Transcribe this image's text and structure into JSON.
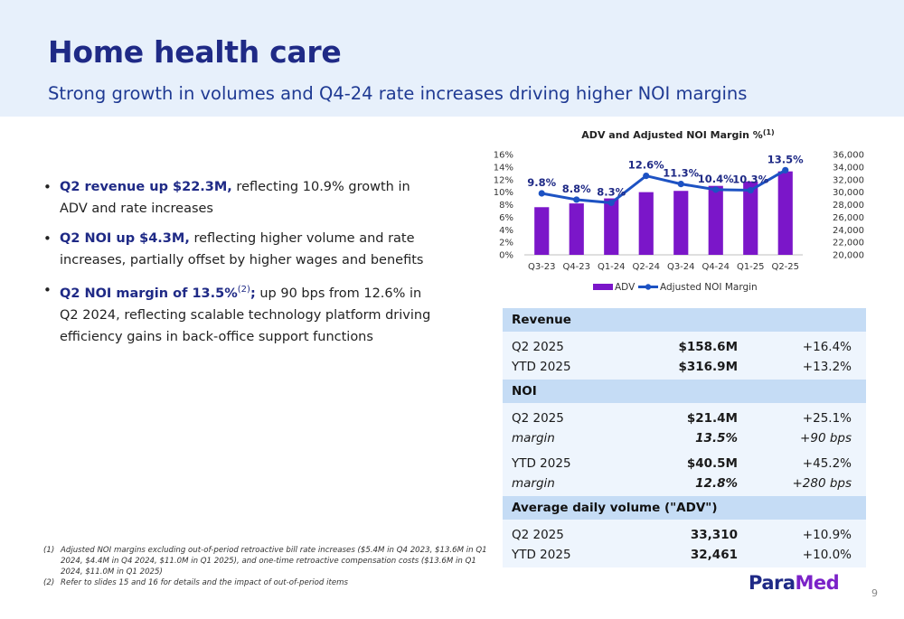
{
  "header": {
    "title": "Home health care",
    "subtitle": "Strong growth in volumes and Q4-24 rate increases driving higher NOI margins"
  },
  "bullets": [
    {
      "strong": "Q2 revenue up $22.3M,",
      "sup": "",
      "semi": "",
      "rest": " reflecting 10.9% growth in ADV and rate increases"
    },
    {
      "strong": "Q2 NOI up $4.3M,",
      "sup": "",
      "semi": "",
      "rest": " reflecting higher volume and rate increases, partially offset by higher wages and benefits"
    },
    {
      "strong": "Q2 NOI margin of 13.5%",
      "sup": "(2)",
      "semi": ";",
      "rest": " up 90 bps from 12.6% in Q2 2024, reflecting scalable technology platform driving efficiency gains in back-office support functions"
    }
  ],
  "chart_data": {
    "type": "bar",
    "title": "ADV and Adjusted NOI Margin %",
    "title_sup": "(1)",
    "categories": [
      "Q3-23",
      "Q4-23",
      "Q1-24",
      "Q2-24",
      "Q3-24",
      "Q4-24",
      "Q1-25",
      "Q2-25"
    ],
    "series": [
      {
        "name": "ADV",
        "type": "bar",
        "axis": "right",
        "values": [
          27600,
          28200,
          29000,
          30000,
          30200,
          31000,
          31700,
          33310
        ],
        "color": "#7b16c9"
      },
      {
        "name": "Adjusted NOI Margin",
        "type": "line",
        "axis": "left",
        "values": [
          9.8,
          8.8,
          8.3,
          12.6,
          11.3,
          10.4,
          10.3,
          13.5
        ],
        "labels": [
          "9.8%",
          "8.8%",
          "8.3%",
          "12.6%",
          "11.3%",
          "10.4%",
          "10.3%",
          "13.5%"
        ],
        "color": "#1d52c3"
      }
    ],
    "y_left": {
      "min": 0,
      "max": 16,
      "step": 2,
      "tick_labels": [
        "0%",
        "2%",
        "4%",
        "6%",
        "8%",
        "10%",
        "12%",
        "14%",
        "16%"
      ]
    },
    "y_right": {
      "min": 20000,
      "max": 36000,
      "step": 2000,
      "tick_labels": [
        "20,000",
        "22,000",
        "24,000",
        "26,000",
        "28,000",
        "30,000",
        "32,000",
        "34,000",
        "36,000"
      ]
    },
    "legend_position": "bottom",
    "grid": false
  },
  "kpi": {
    "revenue": {
      "label": "Revenue",
      "rows": [
        {
          "period": "Q2 2025",
          "value": "$158.6M",
          "change": "+16.4%"
        },
        {
          "period": "YTD 2025",
          "value": "$316.9M",
          "change": "+13.2%"
        }
      ]
    },
    "noi": {
      "label": "NOI",
      "q2": {
        "period": "Q2 2025",
        "value": "$21.4M",
        "change": "+25.1%",
        "m_label": "margin",
        "m_value": "13.5%",
        "m_change": "+90 bps"
      },
      "ytd": {
        "period": "YTD 2025",
        "value": "$40.5M",
        "change": "+45.2%",
        "m_label": "margin",
        "m_value": "12.8%",
        "m_change": "+280 bps"
      }
    },
    "adv": {
      "label": "Average daily volume (\"ADV\")",
      "rows": [
        {
          "period": "Q2 2025",
          "value": "33,310",
          "change": "+10.9%"
        },
        {
          "period": "YTD 2025",
          "value": "32,461",
          "change": "+10.0%"
        }
      ]
    }
  },
  "footnotes": [
    {
      "num": "(1)",
      "text": "Adjusted NOI margins excluding out-of-period retroactive bill rate increases ($5.4M in Q4 2023, $13.6M in Q1 2024, $4.4M in Q4 2024, $11.0M in Q1 2025), and one-time retroactive compensation costs ($13.6M in Q1 2024, $11.0M in Q1 2025)"
    },
    {
      "num": "(2)",
      "text": "Refer to slides 15 and 16 for details and the impact of out-of-period items"
    }
  ],
  "logo": {
    "part1": "Para",
    "part2": "Med"
  },
  "page_number": "9",
  "colors": {
    "title": "#1f2a86",
    "header_bg": "#e7f0fb",
    "bar": "#7b16c9",
    "line": "#1d52c3",
    "table_header": "#c5dcf5",
    "table_body": "#eef5fd"
  }
}
